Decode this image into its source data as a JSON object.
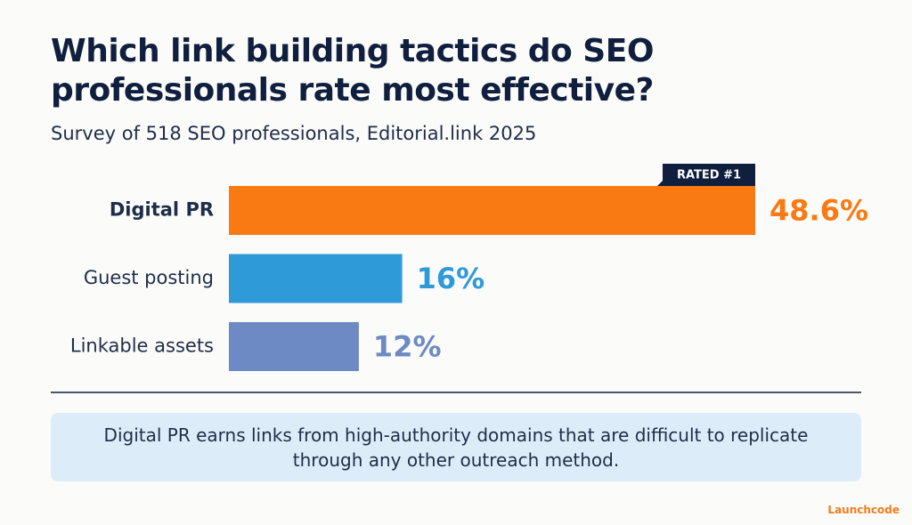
{
  "chart_data": {
    "type": "bar",
    "orientation": "horizontal",
    "title": "Which link building tactics do SEO professionals rate most effective?",
    "subtitle": "Survey of 518 SEO professionals, Editorial.link 2025",
    "categories": [
      "Digital PR",
      "Guest posting",
      "Linkable assets"
    ],
    "values": [
      48.6,
      16,
      12
    ],
    "value_labels": [
      "48.6%",
      "16%",
      "12%"
    ],
    "colors": [
      "#f97a12",
      "#2f9ad8",
      "#6d8ac4"
    ],
    "annotation": "RATED #1",
    "callout": "Digital PR earns links from high-authority domains that are difficult to replicate through any other outreach method.",
    "brand": "Launchcode"
  }
}
